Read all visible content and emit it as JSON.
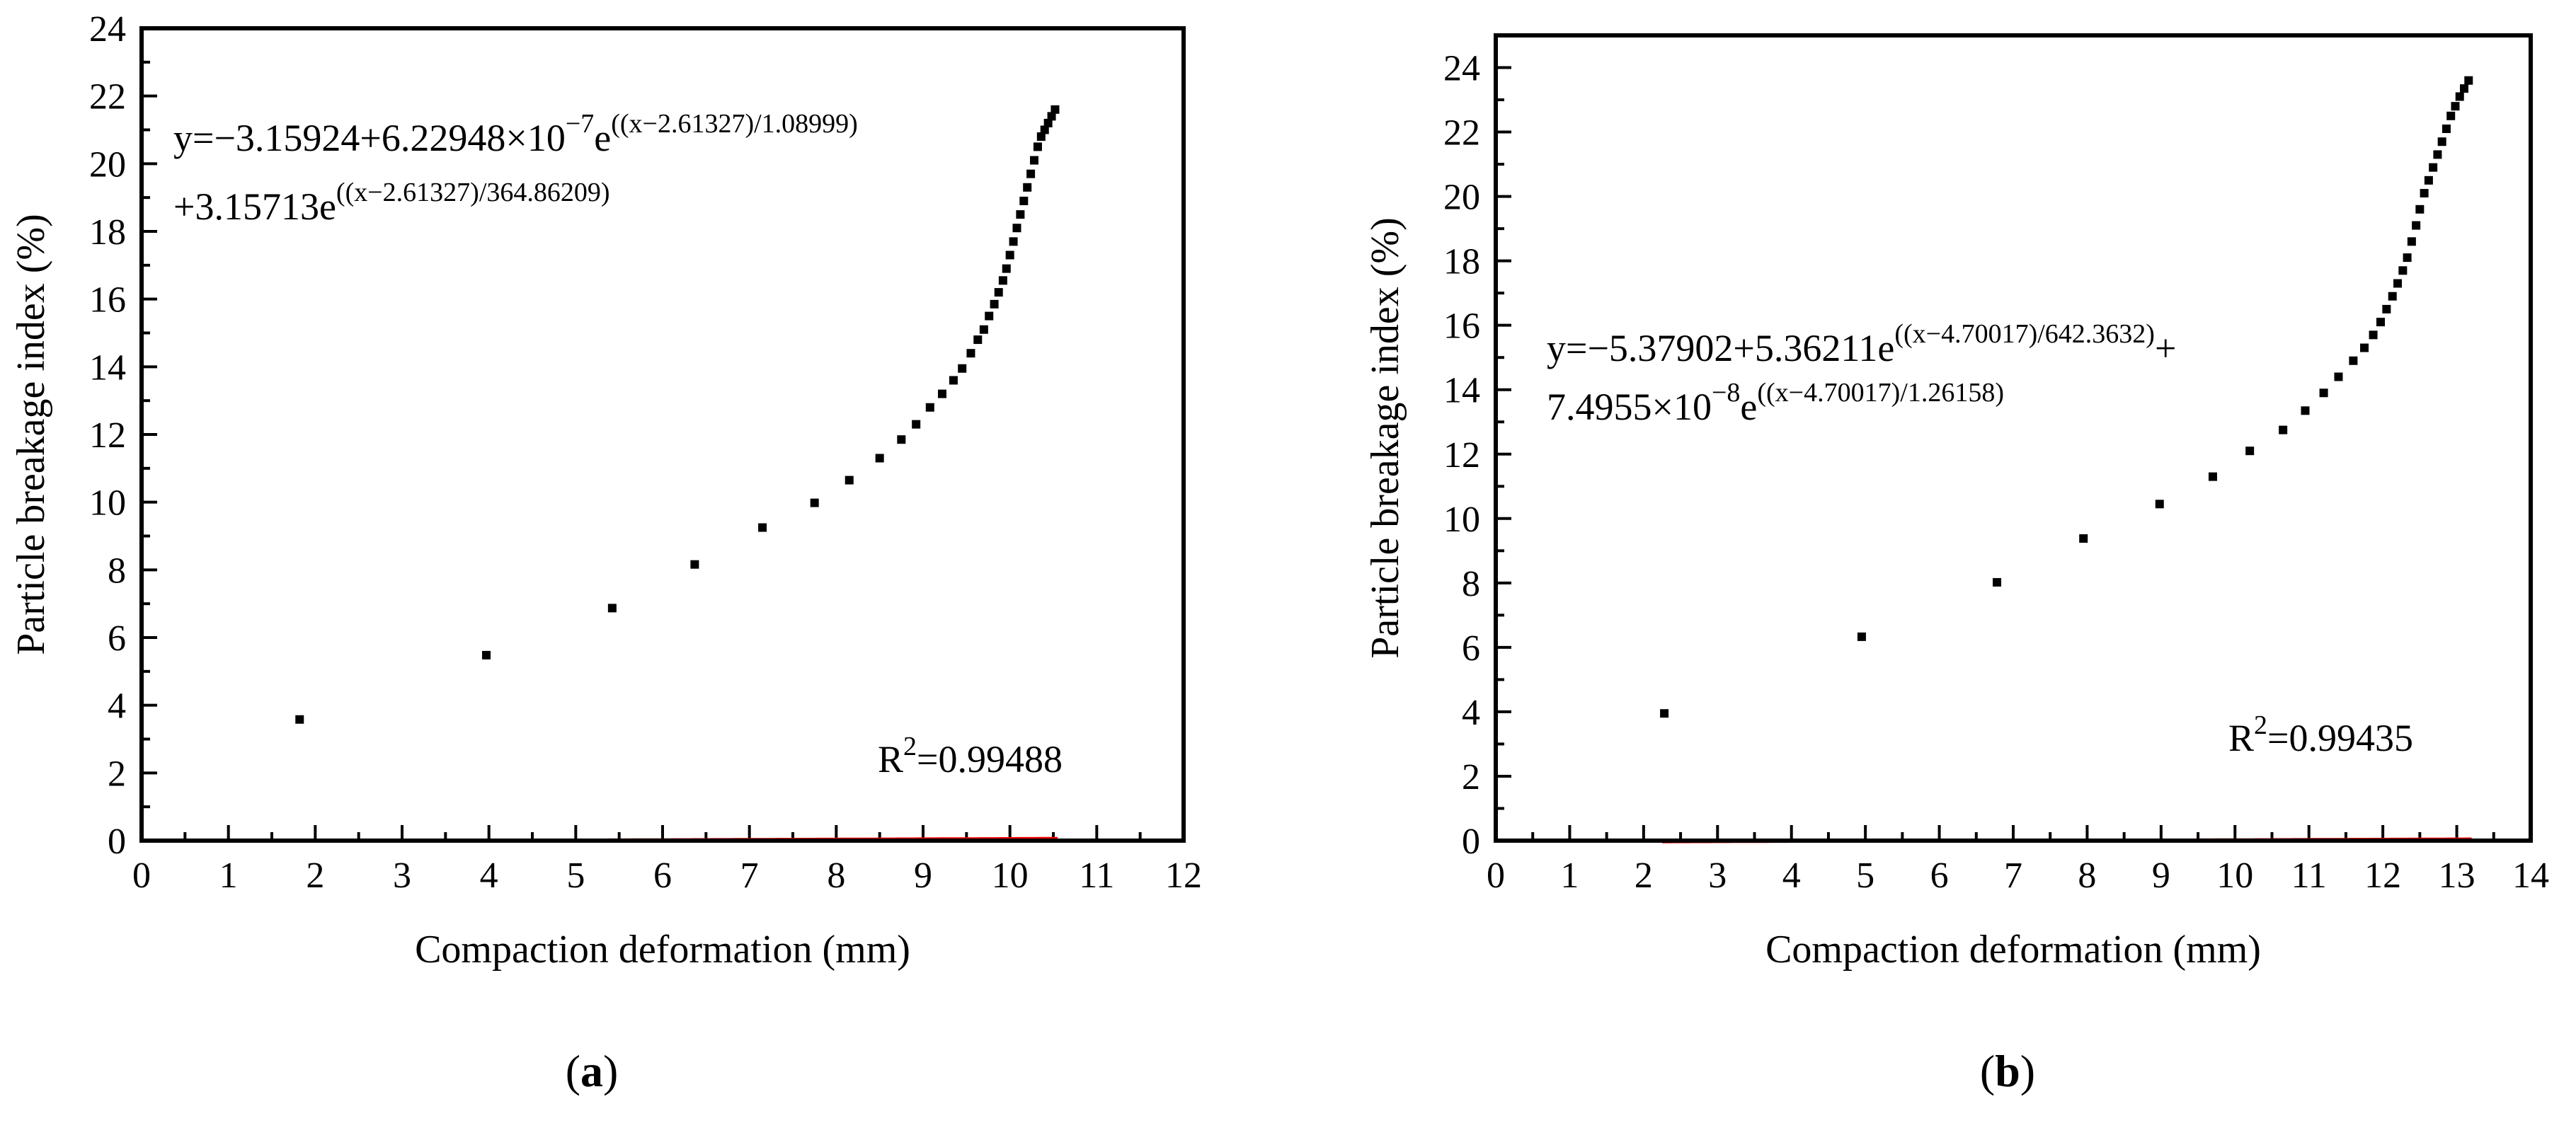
{
  "colors": {
    "fit_line": "#ff0000",
    "points": "#000000",
    "axes": "#000000"
  },
  "chart_data": [
    {
      "type": "scatter",
      "panel": "a",
      "caption": {
        "open": "(",
        "letter": "a",
        "close": ")"
      },
      "xlabel": "Compaction deformation (mm)",
      "ylabel": "Particle breakage index (%)",
      "xlim": [
        0,
        12
      ],
      "ylim": [
        0,
        24
      ],
      "xticks": [
        0,
        1,
        2,
        3,
        4,
        5,
        6,
        7,
        8,
        9,
        10,
        11,
        12
      ],
      "yticks": [
        0,
        2,
        4,
        6,
        8,
        10,
        12,
        14,
        16,
        18,
        20,
        22,
        24
      ],
      "equation": {
        "line1_main": "y=−3.15924+6.22948×10",
        "line1_exp": "−7",
        "line1_e": "e",
        "line1_sup": "((x−2.61327)/1.08999)",
        "line2_main": "+3.15713e",
        "line2_sup": "((x−2.61327)/364.86209)"
      },
      "r2": {
        "prefix": "R",
        "sup": "2",
        "value": "=0.99488"
      },
      "fit": {
        "y0": -3.15924,
        "A1": 6.22948e-07,
        "x0": 2.61327,
        "t1": 1.08999,
        "A2": 3.15713,
        "t2": 364.86209,
        "x_start": 1.8,
        "x_end": 10.55
      },
      "points": [
        [
          1.82,
          3.58
        ],
        [
          3.97,
          5.48
        ],
        [
          5.42,
          6.87
        ],
        [
          6.37,
          8.16
        ],
        [
          7.15,
          9.25
        ],
        [
          7.75,
          9.98
        ],
        [
          8.15,
          10.65
        ],
        [
          8.5,
          11.3
        ],
        [
          8.75,
          11.85
        ],
        [
          8.92,
          12.3
        ],
        [
          9.08,
          12.8
        ],
        [
          9.22,
          13.2
        ],
        [
          9.35,
          13.6
        ],
        [
          9.45,
          13.95
        ],
        [
          9.55,
          14.4
        ],
        [
          9.63,
          14.8
        ],
        [
          9.7,
          15.1
        ],
        [
          9.76,
          15.5
        ],
        [
          9.82,
          15.85
        ],
        [
          9.87,
          16.2
        ],
        [
          9.92,
          16.55
        ],
        [
          9.96,
          16.9
        ],
        [
          10.0,
          17.3
        ],
        [
          10.04,
          17.7
        ],
        [
          10.08,
          18.1
        ],
        [
          10.12,
          18.5
        ],
        [
          10.16,
          18.9
        ],
        [
          10.2,
          19.3
        ],
        [
          10.24,
          19.7
        ],
        [
          10.28,
          20.1
        ],
        [
          10.32,
          20.5
        ],
        [
          10.36,
          20.8
        ],
        [
          10.4,
          21.0
        ],
        [
          10.44,
          21.2
        ],
        [
          10.48,
          21.4
        ],
        [
          10.52,
          21.6
        ]
      ]
    },
    {
      "type": "scatter",
      "panel": "b",
      "caption": {
        "open": "(",
        "letter": "b",
        "close": ")"
      },
      "xlabel": "Compaction deformation (mm)",
      "ylabel": "Particle breakage index (%)",
      "xlim": [
        0,
        14
      ],
      "ylim": [
        0,
        25
      ],
      "xticks": [
        0,
        1,
        2,
        3,
        4,
        5,
        6,
        7,
        8,
        9,
        10,
        11,
        12,
        13,
        14
      ],
      "yticks": [
        0,
        2,
        4,
        6,
        8,
        10,
        12,
        14,
        16,
        18,
        20,
        22,
        24
      ],
      "equation": {
        "line1_main": "y=−5.37902+5.36211e",
        "line1_sup": "((x−4.70017)/642.3632)",
        "line1_tail": "+",
        "line2_main": "7.4955×10",
        "line2_exp": "−8",
        "line2_e": "e",
        "line2_sup": "((x−4.70017)/1.26158)"
      },
      "r2": {
        "prefix": "R",
        "sup": "2",
        "value": "=0.99435"
      },
      "fit": {
        "y0": -5.37902,
        "A1": 5.36211,
        "x0": 4.70017,
        "t1": 642.3632,
        "A2": 7.4955e-08,
        "t2": 1.26158,
        "x_start": 2.25,
        "x_end": 13.2
      },
      "points": [
        [
          2.28,
          3.95
        ],
        [
          4.95,
          6.33
        ],
        [
          6.78,
          8.02
        ],
        [
          7.95,
          9.38
        ],
        [
          8.98,
          10.45
        ],
        [
          9.7,
          11.3
        ],
        [
          10.2,
          12.1
        ],
        [
          10.65,
          12.75
        ],
        [
          10.95,
          13.35
        ],
        [
          11.2,
          13.9
        ],
        [
          11.4,
          14.4
        ],
        [
          11.6,
          14.9
        ],
        [
          11.75,
          15.3
        ],
        [
          11.87,
          15.7
        ],
        [
          11.97,
          16.1
        ],
        [
          12.05,
          16.5
        ],
        [
          12.13,
          16.9
        ],
        [
          12.2,
          17.3
        ],
        [
          12.27,
          17.7
        ],
        [
          12.33,
          18.1
        ],
        [
          12.39,
          18.6
        ],
        [
          12.45,
          19.1
        ],
        [
          12.5,
          19.6
        ],
        [
          12.56,
          20.1
        ],
        [
          12.62,
          20.5
        ],
        [
          12.68,
          20.9
        ],
        [
          12.74,
          21.3
        ],
        [
          12.8,
          21.7
        ],
        [
          12.86,
          22.1
        ],
        [
          12.92,
          22.5
        ],
        [
          12.98,
          22.8
        ],
        [
          13.04,
          23.1
        ],
        [
          13.1,
          23.35
        ],
        [
          13.16,
          23.6
        ]
      ]
    }
  ]
}
